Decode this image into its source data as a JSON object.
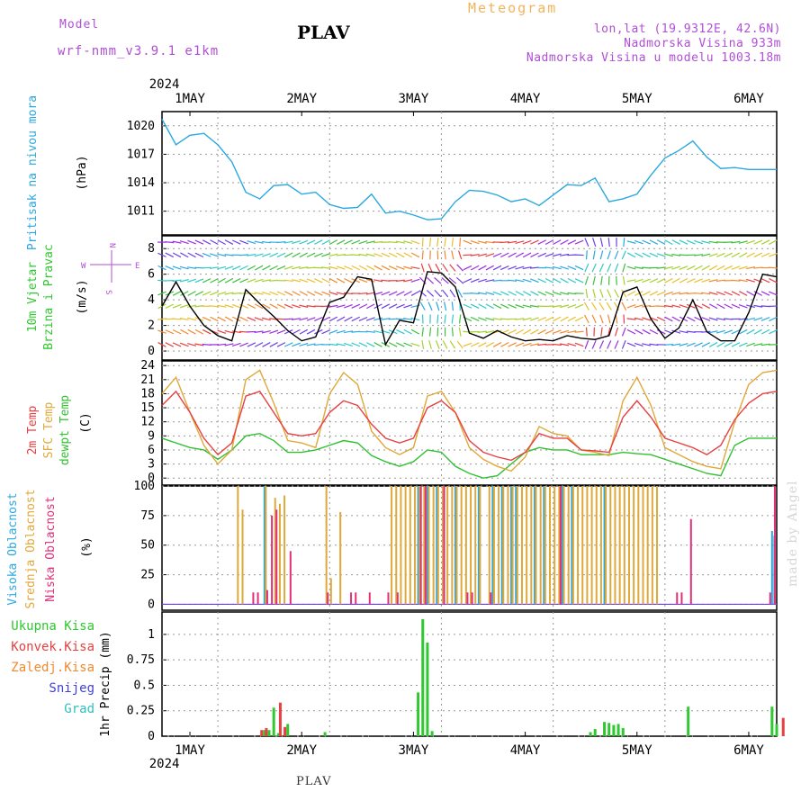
{
  "header": {
    "model_label": "Model",
    "model_name": "wrf-nmm_v3.9.1 e1km",
    "station": "PLAV",
    "meteogram": "Meteogram",
    "coords": "lon,lat (19.9312E, 42.6N)",
    "elevation": "Nadmorska Visina 933m",
    "model_elevation": "Nadmorska Visina u modelu 1003.18m"
  },
  "footer": {
    "station": "PLAV",
    "signature": "made by Angel"
  },
  "colors": {
    "pressure": "#2aa8e0",
    "wind_label": "#30c830",
    "temp2m": "#e84040",
    "sfc": "#e0a838",
    "dew": "#30c030",
    "high_cloud": "#2aa8e0",
    "mid_cloud": "#e0a838",
    "low_cloud": "#e0307a",
    "precip_total": "#30c830",
    "precip_conv": "#e84040",
    "precip_frz": "#f08a30",
    "snow": "#4040e0",
    "grad": "#30c0c0",
    "violet": "#b04fd6"
  },
  "time_axis": {
    "year": "2024",
    "days": [
      "1MAY",
      "2MAY",
      "3MAY",
      "4MAY",
      "5MAY",
      "6MAY"
    ]
  },
  "chart_data": [
    {
      "type": "line",
      "title": "",
      "ylabel": "Pritisak na nivou mora",
      "unit": "(hPa)",
      "ylim": [
        1008.5,
        1021.5
      ],
      "yticks": [
        "1020",
        "1017",
        "1014",
        "1011"
      ],
      "xlim": [
        0,
        132
      ],
      "x": [
        0,
        3,
        6,
        9,
        12,
        15,
        18,
        21,
        24,
        27,
        30,
        33,
        36,
        39,
        42,
        45,
        48,
        51,
        54,
        57,
        60,
        63,
        66,
        69,
        72,
        75,
        78,
        81,
        84,
        87,
        90,
        93,
        96,
        99,
        102,
        105,
        108,
        111,
        114,
        117,
        120,
        123,
        126,
        129,
        132
      ],
      "series": [
        {
          "name": "Pritisak na nivou mora",
          "values": [
            1020.7,
            1018.0,
            1019.0,
            1019.2,
            1018.0,
            1016.2,
            1013.0,
            1012.3,
            1013.7,
            1013.8,
            1012.8,
            1013.0,
            1011.7,
            1011.3,
            1011.4,
            1012.8,
            1010.8,
            1011.0,
            1010.6,
            1010.1,
            1010.2,
            1012.0,
            1013.2,
            1013.1,
            1012.7,
            1012.0,
            1012.3,
            1011.6,
            1012.7,
            1013.8,
            1013.7,
            1014.5,
            1012.0,
            1012.3,
            1012.8,
            1014.8,
            1016.6,
            1017.4,
            1018.4,
            1016.7,
            1015.5,
            1015.6,
            1015.4,
            1015.4,
            1015.4
          ]
        }
      ]
    },
    {
      "type": "line",
      "title": "",
      "ylabel": "10m Vjetar Brzina i Pravac",
      "unit": "(m/s)",
      "ylim": [
        -0.7,
        9
      ],
      "yticks": [
        "8",
        "6",
        "4",
        "2",
        "0"
      ],
      "compass": {
        "north": "N",
        "south": "S",
        "west": "W",
        "east": "E"
      },
      "xlim": [
        0,
        132
      ],
      "x": [
        0,
        3,
        6,
        9,
        12,
        15,
        18,
        21,
        24,
        27,
        30,
        33,
        36,
        39,
        42,
        45,
        48,
        51,
        54,
        57,
        60,
        63,
        66,
        69,
        72,
        75,
        78,
        81,
        84,
        87,
        90,
        93,
        96,
        99,
        102,
        105,
        108,
        111,
        114,
        117,
        120,
        123,
        126,
        129,
        132
      ],
      "series": [
        {
          "name": "wind speed",
          "values": [
            3.5,
            5.4,
            3.5,
            2.0,
            1.2,
            0.8,
            4.8,
            3.7,
            2.7,
            1.6,
            0.8,
            1.1,
            3.8,
            4.2,
            5.8,
            5.6,
            0.5,
            2.4,
            2.2,
            6.2,
            6.1,
            5.0,
            1.4,
            1.0,
            1.6,
            1.1,
            0.8,
            0.9,
            0.8,
            1.2,
            1.0,
            0.9,
            1.2,
            4.6,
            5.0,
            2.5,
            1.0,
            1.8,
            4.0,
            1.5,
            0.8,
            0.8,
            3.0,
            6.0,
            5.8
          ]
        }
      ]
    },
    {
      "type": "line",
      "title": "",
      "ylabel": "2m Temp / SFC Temp / dewpt Temp",
      "unit": "(C)",
      "ylim": [
        -1.5,
        25
      ],
      "yticks": [
        "24",
        "21",
        "18",
        "15",
        "12",
        "9",
        "6",
        "3",
        "0"
      ],
      "xlim": [
        0,
        132
      ],
      "x": [
        0,
        3,
        6,
        9,
        12,
        15,
        18,
        21,
        24,
        27,
        30,
        33,
        36,
        39,
        42,
        45,
        48,
        51,
        54,
        57,
        60,
        63,
        66,
        69,
        72,
        75,
        78,
        81,
        84,
        87,
        90,
        93,
        96,
        99,
        102,
        105,
        108,
        111,
        114,
        117,
        120,
        123,
        126,
        129,
        132
      ],
      "series": [
        {
          "name": "2m Temp",
          "values": [
            15.5,
            18.5,
            14.0,
            8.5,
            5.0,
            7.5,
            17.5,
            18.5,
            14.0,
            9.5,
            9.0,
            9.5,
            14.0,
            16.5,
            15.5,
            11.5,
            8.5,
            7.5,
            8.5,
            15.0,
            16.5,
            14.0,
            8.0,
            5.5,
            4.5,
            3.8,
            5.5,
            9.5,
            8.5,
            8.5,
            6.0,
            5.8,
            5.5,
            13.0,
            16.5,
            13.0,
            8.5,
            7.5,
            6.5,
            5.0,
            7.0,
            12.5,
            16.0,
            18.0,
            18.5
          ]
        },
        {
          "name": "SFC Temp",
          "values": [
            18.0,
            21.5,
            14.0,
            7.0,
            3.0,
            6.0,
            21.0,
            23.0,
            16.0,
            8.0,
            7.5,
            6.5,
            18.0,
            22.5,
            20.0,
            10.0,
            6.5,
            5.0,
            6.5,
            17.5,
            18.5,
            14.0,
            6.5,
            4.0,
            2.5,
            1.5,
            4.5,
            11.0,
            9.5,
            9.0,
            6.0,
            5.5,
            4.8,
            16.5,
            21.5,
            15.5,
            6.5,
            5.0,
            3.5,
            2.5,
            2.0,
            12.0,
            20.0,
            22.5,
            23.0
          ]
        },
        {
          "name": "dewpt Temp",
          "values": [
            8.5,
            7.5,
            6.5,
            6.0,
            4.0,
            6.0,
            9.0,
            9.5,
            8.0,
            5.5,
            5.5,
            6.0,
            7.0,
            8.0,
            7.5,
            4.8,
            3.5,
            2.5,
            3.5,
            6.0,
            5.5,
            2.5,
            1.0,
            0.0,
            0.5,
            3.0,
            5.5,
            6.5,
            6.0,
            6.0,
            5.0,
            5.0,
            5.0,
            5.5,
            5.2,
            5.0,
            4.0,
            3.0,
            2.0,
            1.0,
            0.5,
            7.0,
            8.5,
            8.5,
            8.5
          ]
        }
      ]
    },
    {
      "type": "bar",
      "title": "",
      "ylabel": "Visoka Oblacnost / Srednja Oblacnost / Niska Oblacnost",
      "unit": "(%)",
      "ylim": [
        -5,
        100
      ],
      "yticks": [
        "100",
        "75",
        "50",
        "25",
        "0"
      ],
      "xlim": [
        0,
        132
      ],
      "series": [
        {
          "name": "Visoka Oblacnost",
          "x": [
            22,
            55,
            57,
            59,
            63,
            68,
            71,
            73,
            75,
            76,
            80,
            82,
            86,
            88,
            95,
            131,
            131.5
          ],
          "values": [
            100,
            100,
            100,
            100,
            100,
            100,
            100,
            100,
            100,
            100,
            100,
            100,
            100,
            100,
            100,
            62,
            58
          ]
        },
        {
          "name": "Srednja Oblacnost",
          "x": [
            16,
            17,
            22,
            24,
            25,
            26,
            35,
            36,
            38,
            49,
            50,
            51,
            52,
            53,
            54,
            55,
            56,
            57,
            58,
            59,
            60,
            61,
            62,
            63,
            64,
            65,
            66,
            67,
            68,
            70,
            71,
            72,
            73,
            74,
            75,
            76,
            77,
            78,
            79,
            80,
            81,
            82,
            83,
            84,
            85,
            86,
            87,
            88,
            89,
            90,
            91,
            92,
            93,
            94,
            95,
            96,
            97,
            98,
            99,
            100,
            101,
            102,
            103,
            104,
            105,
            106
          ],
          "values": [
            100,
            80,
            100,
            90,
            85,
            92,
            100,
            22,
            78,
            100,
            100,
            100,
            100,
            100,
            100,
            100,
            100,
            100,
            100,
            100,
            100,
            100,
            100,
            100,
            100,
            100,
            100,
            100,
            100,
            100,
            100,
            100,
            100,
            100,
            100,
            100,
            100,
            100,
            100,
            100,
            100,
            100,
            100,
            100,
            100,
            100,
            100,
            100,
            100,
            100,
            100,
            100,
            100,
            100,
            100,
            100,
            100,
            100,
            100,
            100,
            100,
            100,
            100,
            100,
            100,
            100
          ]
        },
        {
          "name": "Niska Oblacnost",
          "x": [
            19,
            20,
            22,
            23,
            24,
            27,
            35,
            40,
            41,
            44,
            48,
            50,
            55,
            56,
            60,
            65,
            66,
            70,
            85,
            110,
            111,
            113,
            130,
            131
          ],
          "values": [
            10,
            10,
            12,
            75,
            80,
            45,
            10,
            10,
            10,
            10,
            10,
            10,
            100,
            100,
            100,
            10,
            10,
            10,
            100,
            10,
            10,
            72,
            10,
            100
          ]
        }
      ]
    },
    {
      "type": "bar",
      "title": "",
      "ylabel": "1hr Precip",
      "unit": "(mm)",
      "ylim": [
        0,
        1.22
      ],
      "yticks": [
        "1",
        "0.75",
        "0.5",
        "0.25",
        "0"
      ],
      "legend": [
        "Ukupna Kisa",
        "Konvek.Kisa",
        "Zaledj.Kisa",
        "Snijeg",
        "Grad"
      ],
      "xlim": [
        0,
        132
      ],
      "series": [
        {
          "name": "Ukupna Kisa",
          "x": [
            22,
            23,
            24,
            25,
            27,
            35,
            55,
            56,
            57,
            58,
            92,
            93,
            95,
            96,
            97,
            98,
            99,
            113,
            131,
            132
          ],
          "values": [
            0.06,
            0.06,
            0.28,
            0.03,
            0.12,
            0.04,
            0.43,
            1.15,
            0.92,
            0.05,
            0.04,
            0.07,
            0.14,
            0.13,
            0.11,
            0.12,
            0.08,
            0.29,
            0.29,
            0.12
          ]
        },
        {
          "name": "Konvek.Kisa",
          "x": [
            21,
            22,
            25,
            26,
            133
          ],
          "values": [
            0.06,
            0.08,
            0.33,
            0.09,
            0.18
          ]
        }
      ]
    }
  ]
}
